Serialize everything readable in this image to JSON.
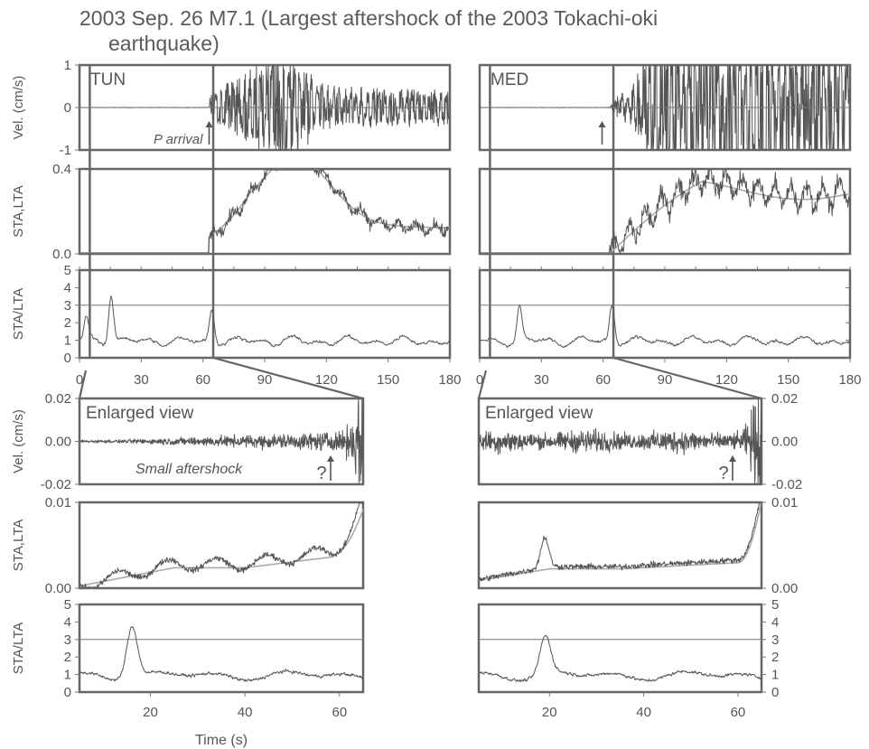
{
  "title_line1": "2003 Sep. 26  M7.1  (Largest aftershock of the 2003 Tokachi-oki",
  "title_line2": "earthquake)",
  "xlabel": "Time (s)",
  "colors": {
    "trace": "#555555",
    "lta": "#aaaaaa",
    "frame": "#666666",
    "text": "#555555"
  },
  "chart_data": [
    {
      "type": "line",
      "station": "TUN",
      "row": "velocity",
      "label": "TUN",
      "annotation": "P arrival",
      "ylabel": "Vel. (cm/s)",
      "xlim": [
        0,
        180
      ],
      "ylim": [
        -1,
        1
      ],
      "yticks": [
        "1",
        "0",
        "-1"
      ],
      "p_arrival_s": 63,
      "series": [
        {
          "name": "Velocity"
        }
      ]
    },
    {
      "type": "line",
      "station": "MED",
      "row": "velocity",
      "label": "MED",
      "ylim": [
        -1,
        1
      ],
      "xlim": [
        0,
        180
      ],
      "p_arrival_s": 63,
      "series": [
        {
          "name": "Velocity"
        }
      ]
    },
    {
      "type": "line",
      "station": "TUN",
      "row": "sta_lta",
      "ylabel": "STA,LTA",
      "xlim": [
        0,
        180
      ],
      "ylim": [
        0,
        0.4
      ],
      "yticks": [
        "0.4",
        "0.0"
      ],
      "series": [
        {
          "name": "STA"
        },
        {
          "name": "LTA"
        }
      ]
    },
    {
      "type": "line",
      "station": "MED",
      "row": "sta_lta",
      "xlim": [
        0,
        180
      ],
      "ylim": [
        0,
        0.4
      ],
      "series": [
        {
          "name": "STA"
        },
        {
          "name": "LTA"
        }
      ]
    },
    {
      "type": "line",
      "station": "TUN",
      "row": "ratio",
      "ylabel": "STA/LTA",
      "xlim": [
        0,
        180
      ],
      "ylim": [
        0,
        5
      ],
      "threshold": 3,
      "yticks": [
        "5",
        "4",
        "3",
        "2",
        "1",
        "0"
      ],
      "xticks": [
        "0",
        "30",
        "60",
        "90",
        "120",
        "150",
        "180"
      ],
      "peaks": [
        {
          "x": 15,
          "y": 4.1
        },
        {
          "x": 3,
          "y": 2.5
        },
        {
          "x": 64,
          "y": 3.1
        }
      ]
    },
    {
      "type": "line",
      "station": "MED",
      "row": "ratio",
      "xlim": [
        0,
        180
      ],
      "ylim": [
        0,
        5
      ],
      "threshold": 3,
      "xticks": [
        "0",
        "30",
        "60",
        "90",
        "120",
        "150",
        "180"
      ],
      "peaks": [
        {
          "x": 19,
          "y": 3.2
        },
        {
          "x": 64,
          "y": 3.4
        }
      ]
    },
    {
      "type": "line",
      "station": "TUN",
      "row": "enlarged_velocity",
      "label": "Enlarged view",
      "annotation": "Small aftershock",
      "question": "?",
      "ylabel": "Vel. (cm/s)",
      "xlim": [
        5,
        65
      ],
      "ylim": [
        -0.02,
        0.02
      ],
      "yticks": [
        "0.02",
        "0.00",
        "-0.02"
      ]
    },
    {
      "type": "line",
      "station": "MED",
      "row": "enlarged_velocity",
      "label": "Enlarged view",
      "question": "?",
      "xlim": [
        5,
        65
      ],
      "ylim": [
        -0.02,
        0.02
      ],
      "yticks": [
        "0.02",
        "0.00",
        "-0.02"
      ]
    },
    {
      "type": "line",
      "station": "TUN",
      "row": "enlarged_sta_lta",
      "ylabel": "STA,LTA",
      "xlim": [
        5,
        65
      ],
      "ylim": [
        0,
        0.01
      ],
      "yticks": [
        "0.01",
        "0.00"
      ]
    },
    {
      "type": "line",
      "station": "MED",
      "row": "enlarged_sta_lta",
      "xlim": [
        5,
        65
      ],
      "ylim": [
        0,
        0.01
      ],
      "yticks": [
        "0.01",
        "0.00"
      ]
    },
    {
      "type": "line",
      "station": "TUN",
      "row": "enlarged_ratio",
      "ylabel": "STA/LTA",
      "xlim": [
        5,
        65
      ],
      "ylim": [
        0,
        5
      ],
      "threshold": 3,
      "yticks": [
        "5",
        "4",
        "3",
        "2",
        "1",
        "0"
      ],
      "xticks": [
        "20",
        "40",
        "60"
      ],
      "peaks": [
        {
          "x": 16,
          "y": 4.1
        }
      ]
    },
    {
      "type": "line",
      "station": "MED",
      "row": "enlarged_ratio",
      "xlim": [
        5,
        65
      ],
      "ylim": [
        0,
        5
      ],
      "threshold": 3,
      "yticks": [
        "5",
        "4",
        "3",
        "2",
        "1",
        "0"
      ],
      "xticks": [
        "20",
        "40",
        "60"
      ],
      "peaks": [
        {
          "x": 19,
          "y": 3.3
        }
      ]
    }
  ]
}
